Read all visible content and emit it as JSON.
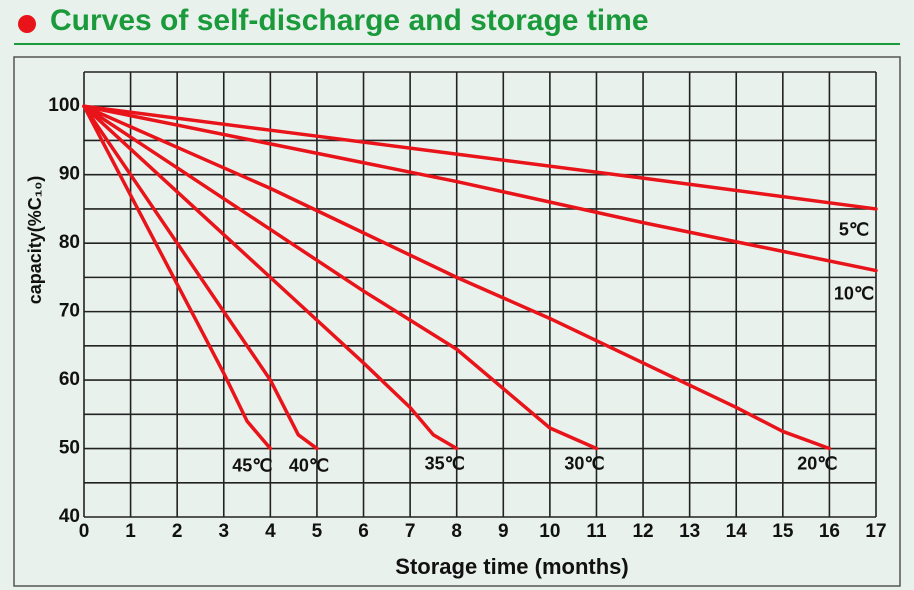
{
  "chart_data": {
    "type": "line",
    "title": "Curves of self-discharge and storage time",
    "x_label": "Storage time (months)",
    "y_label": "capacity(%C₁₀)",
    "xlim": [
      0,
      17
    ],
    "xticks": [
      0,
      1,
      2,
      3,
      4,
      5,
      6,
      7,
      8,
      9,
      10,
      11,
      12,
      13,
      14,
      15,
      16,
      17
    ],
    "ylim": [
      40,
      105
    ],
    "yticks": [
      40,
      50,
      60,
      70,
      80,
      90,
      100
    ],
    "minor_yticks": [
      45,
      55,
      65,
      75,
      85,
      95,
      105
    ],
    "grid": true,
    "series": [
      {
        "name": "5℃",
        "color": "#e8141a",
        "x": [
          0,
          4,
          8,
          12,
          17
        ],
        "values": [
          100,
          96.5,
          93,
          89.5,
          85
        ]
      },
      {
        "name": "10℃",
        "color": "#e8141a",
        "x": [
          0,
          4,
          8,
          12,
          17
        ],
        "values": [
          100,
          94.5,
          89,
          83,
          76
        ]
      },
      {
        "name": "20℃",
        "color": "#e8141a",
        "x": [
          0,
          2,
          4,
          6,
          8,
          10,
          12,
          14,
          15,
          16
        ],
        "values": [
          100,
          94,
          88,
          81.5,
          75,
          69,
          62.5,
          56,
          52.5,
          50
        ]
      },
      {
        "name": "30℃",
        "color": "#e8141a",
        "x": [
          0,
          2,
          4,
          6,
          8,
          10,
          11
        ],
        "values": [
          100,
          91,
          82,
          73,
          64.5,
          53,
          50
        ]
      },
      {
        "name": "35℃",
        "color": "#e8141a",
        "x": [
          0,
          2,
          4,
          6,
          7,
          7.5,
          8
        ],
        "values": [
          100,
          87.5,
          75,
          62.5,
          56,
          52,
          50
        ]
      },
      {
        "name": "40℃",
        "color": "#e8141a",
        "x": [
          0,
          1,
          2,
          3,
          4,
          4.6,
          5
        ],
        "values": [
          100,
          90,
          80,
          70,
          60,
          52,
          50
        ]
      },
      {
        "name": "45℃",
        "color": "#e8141a",
        "x": [
          0,
          1,
          2,
          3,
          3.5,
          4
        ],
        "values": [
          100,
          87,
          74,
          61,
          54,
          50
        ]
      }
    ]
  }
}
